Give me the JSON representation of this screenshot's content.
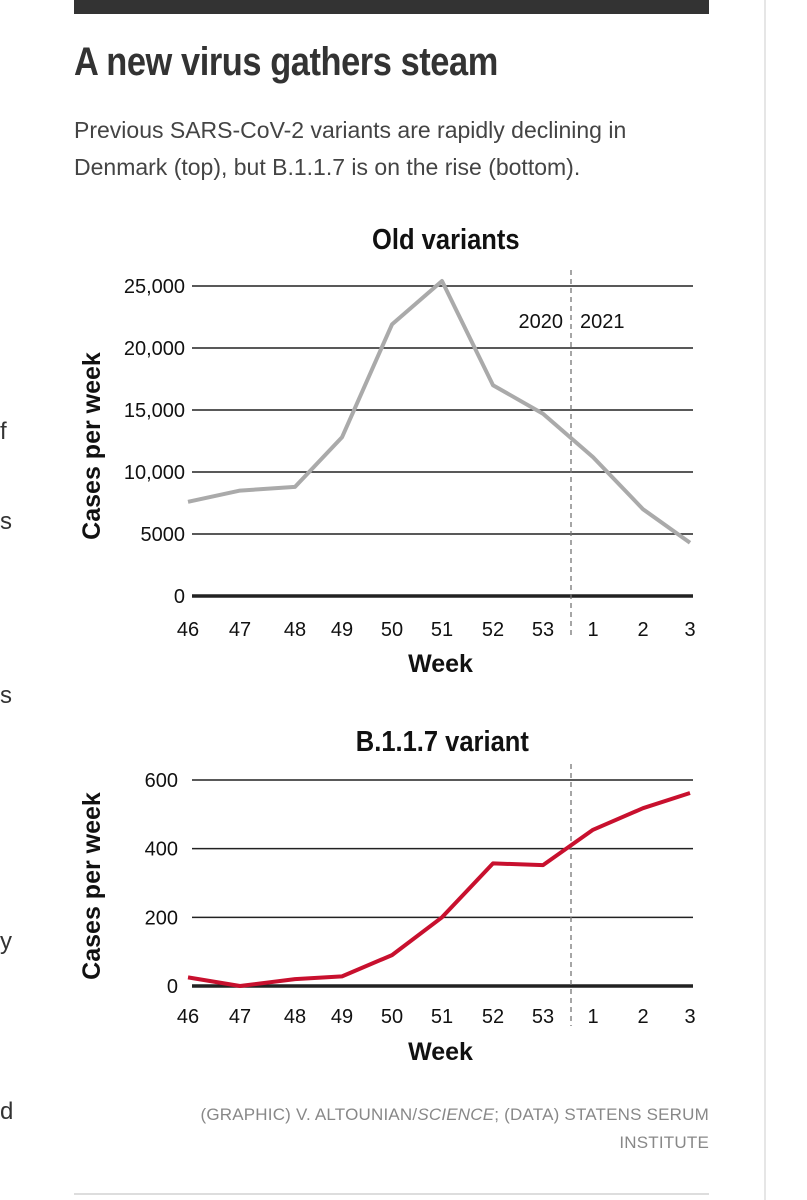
{
  "headline": "A new virus gathers steam",
  "subheadline": "Previous SARS-CoV-2 variants are rapidly declining in Denmark (top), but B.1.1.7 is on the rise (bottom).",
  "credit": {
    "prefix": "(GRAPHIC) V. ALTOUNIAN/",
    "publication": "SCIENCE",
    "suffix": "; (DATA) STATENS SERUM INSTITUTE"
  },
  "edge_fragments": [
    "f",
    "s",
    "s",
    "y",
    "d"
  ],
  "colors": {
    "old_series": "#aaaaaa",
    "new_series": "#c8102e",
    "grid": "#222222"
  },
  "chart_data": [
    {
      "type": "line",
      "title": "Old variants",
      "xlabel": "Week",
      "ylabel": "Cases per week",
      "categories": [
        "46",
        "47",
        "48",
        "49",
        "50",
        "51",
        "52",
        "53",
        "1",
        "2",
        "3"
      ],
      "series": [
        {
          "values": [
            7600,
            8500,
            8800,
            12800,
            21900,
            25400,
            17000,
            14700,
            11200,
            7000,
            4300
          ]
        }
      ],
      "ylim": [
        0,
        25000
      ],
      "yticks": [
        0,
        5000,
        10000,
        15000,
        20000,
        25000
      ],
      "ytick_labels": [
        "0",
        "5000",
        "10,000",
        "15,000",
        "20,000",
        "25,000"
      ],
      "grid": true,
      "year_divider": {
        "left_label": "2020",
        "right_label": "2021"
      }
    },
    {
      "type": "line",
      "title": "B.1.1.7 variant",
      "xlabel": "Week",
      "ylabel": "Cases per week",
      "categories": [
        "46",
        "47",
        "48",
        "49",
        "50",
        "51",
        "52",
        "53",
        "1",
        "2",
        "3"
      ],
      "series": [
        {
          "values": [
            25,
            0,
            20,
            28,
            90,
            200,
            357,
            352,
            455,
            518,
            562
          ]
        }
      ],
      "ylim": [
        0,
        600
      ],
      "yticks": [
        0,
        200,
        400,
        600
      ],
      "ytick_labels": [
        "0",
        "200",
        "400",
        "600"
      ],
      "grid": true,
      "year_divider": {}
    }
  ]
}
